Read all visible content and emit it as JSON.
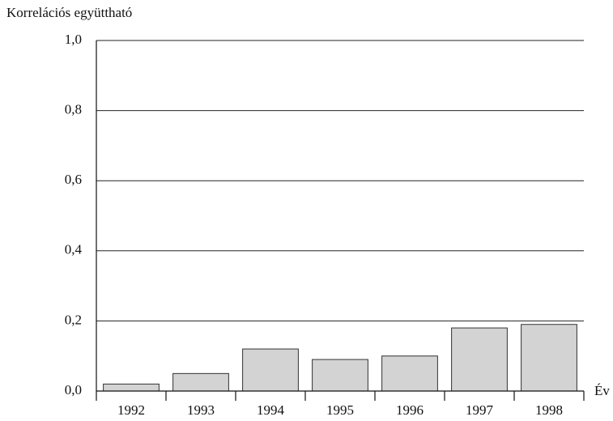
{
  "chart_data": {
    "type": "bar",
    "y_label": "Korrelációs együttható",
    "x_label": "Év",
    "categories": [
      "1992",
      "1993",
      "1994",
      "1995",
      "1996",
      "1997",
      "1998"
    ],
    "values": [
      0.02,
      0.05,
      0.12,
      0.09,
      0.1,
      0.18,
      0.19
    ],
    "color": "#d3d3d3",
    "ylim": [
      0,
      1
    ],
    "yticks": [
      {
        "value": 0,
        "label": "0,0"
      },
      {
        "value": 0.2,
        "label": "0,2"
      },
      {
        "value": 0.4,
        "label": "0,4"
      },
      {
        "value": 0.6,
        "label": "0,6"
      },
      {
        "value": 0.8,
        "label": "0,8"
      },
      {
        "value": 1,
        "label": "1,0"
      }
    ],
    "grid": true
  }
}
